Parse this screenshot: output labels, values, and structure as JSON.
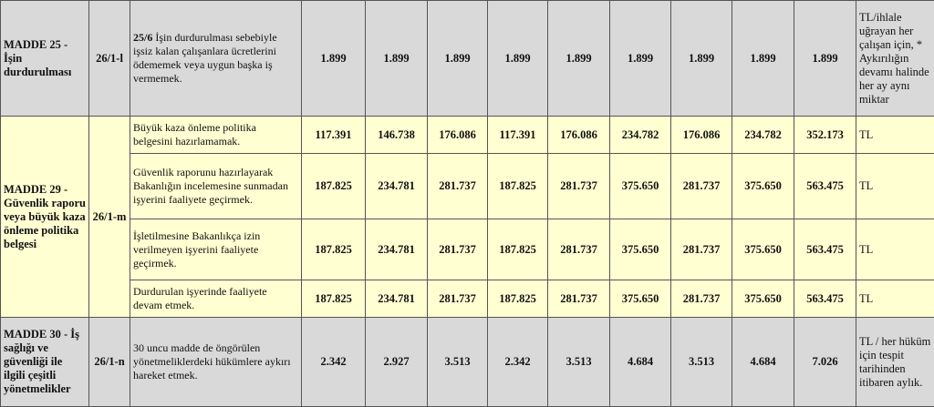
{
  "table": {
    "groups": [
      {
        "article": "MADDE 25 - İşin durdurulması",
        "code": "26/1-l",
        "items": [
          {
            "prefix": "25/6",
            "description": "İşin durdurulması sebebiyle işsiz kalan çalışanlara ücretlerini ödememek veya uygun başka iş vermemek.",
            "values": [
              "1.899",
              "1.899",
              "1.899",
              "1.899",
              "1.899",
              "1.899",
              "1.899",
              "1.899",
              "1.899"
            ],
            "unit": "TL/ihlale uğrayan her çalışan için, * Aykırılığın devamı halinde her ay aynı miktar"
          }
        ]
      },
      {
        "article": "MADDE 29 - Güvenlik raporu veya büyük kaza önleme politika belgesi",
        "code": "26/1-m",
        "items": [
          {
            "description": "Büyük kaza önleme politika belgesini hazırlamamak.",
            "values": [
              "117.391",
              "146.738",
              "176.086",
              "117.391",
              "176.086",
              "234.782",
              "176.086",
              "234.782",
              "352.173"
            ],
            "unit": "TL"
          },
          {
            "description": "Güvenlik raporunu hazırlayarak Bakanlığın incelemesine sunmadan işyerini faaliyete geçirmek.",
            "values": [
              "187.825",
              "234.781",
              "281.737",
              "187.825",
              "281.737",
              "375.650",
              "281.737",
              "375.650",
              "563.475"
            ],
            "unit": "TL"
          },
          {
            "description": "İşletilmesine Bakanlıkça izin verilmeyen işyerini faaliyete geçirmek.",
            "values": [
              "187.825",
              "234.781",
              "281.737",
              "187.825",
              "281.737",
              "375.650",
              "281.737",
              "375.650",
              "563.475"
            ],
            "unit": "TL"
          },
          {
            "description": "Durdurulan işyerinde faaliyete devam etmek.",
            "values": [
              "187.825",
              "234.781",
              "281.737",
              "187.825",
              "281.737",
              "375.650",
              "281.737",
              "375.650",
              "563.475"
            ],
            "unit": "TL"
          }
        ]
      },
      {
        "article": "MADDE 30 - İş sağlığı ve güvenliği ile ilgili çeşitli yönetmelikler",
        "code": "26/1-n",
        "items": [
          {
            "description": "30 uncu madde de öngörülen yönetmeliklerdeki hükümlere aykırı hareket etmek.",
            "values": [
              "2.342",
              "2.927",
              "3.513",
              "2.342",
              "3.513",
              "4.684",
              "3.513",
              "4.684",
              "7.026"
            ],
            "unit": "TL  / her hüküm için tespit tarihinden itibaren aylık."
          }
        ]
      }
    ]
  }
}
